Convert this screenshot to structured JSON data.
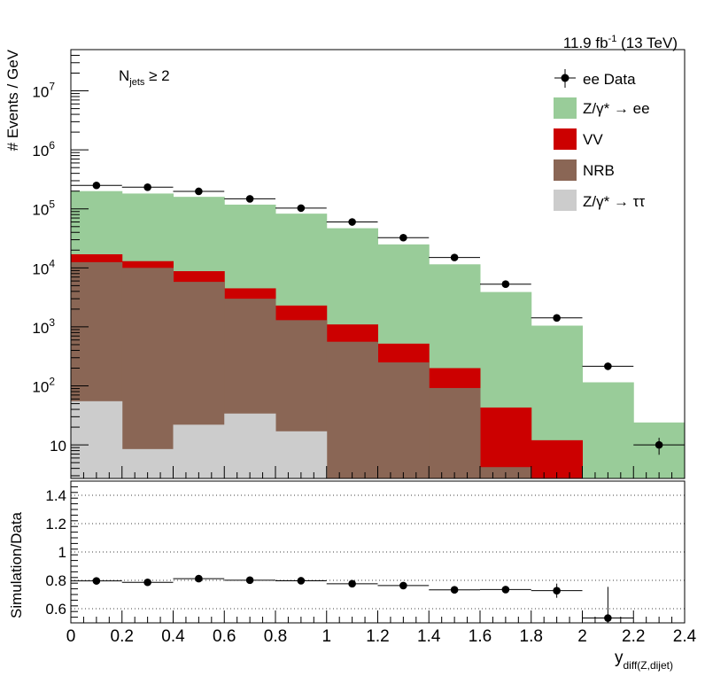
{
  "lumi_label": {
    "main": "11.9 fb",
    "sup": "-1",
    "tail": " (13 TeV)"
  },
  "selection_label": {
    "main": "N",
    "sub": "jets",
    "tail": " ≥ 2"
  },
  "ylabel_top": "# Events / GeV",
  "ylabel_bottom": "Simulation/Data",
  "xlabel": {
    "main": "y",
    "sub": "diff(Z,dijet)"
  },
  "legend": [
    {
      "key": "data",
      "kind": "marker",
      "text": "ee Data"
    },
    {
      "key": "zee",
      "kind": "box",
      "text": "Z/γ* → ee"
    },
    {
      "key": "vv",
      "kind": "box",
      "text": "VV"
    },
    {
      "key": "nrb",
      "kind": "box",
      "text": "NRB"
    },
    {
      "key": "ztt",
      "kind": "box",
      "text": "Z/γ* → ττ"
    }
  ],
  "colors": {
    "zee": "#99cc99",
    "vv": "#cc0000",
    "nrb": "#8a6655",
    "ztt": "#cccccc",
    "data": "#000000"
  },
  "chart_data": [
    {
      "type": "stacked-histogram-log",
      "xlim": [
        0,
        2.4
      ],
      "ylim": [
        2.7,
        50000000
      ],
      "yscale": "log",
      "y_ticks": [
        {
          "v": 10,
          "mant": "10",
          "exp": ""
        },
        {
          "v": 100,
          "mant": "10",
          "exp": "2"
        },
        {
          "v": 1000,
          "mant": "10",
          "exp": "3"
        },
        {
          "v": 10000,
          "mant": "10",
          "exp": "4"
        },
        {
          "v": 100000,
          "mant": "10",
          "exp": "5"
        },
        {
          "v": 1000000,
          "mant": "10",
          "exp": "6"
        },
        {
          "v": 10000000,
          "mant": "10",
          "exp": "7"
        }
      ],
      "bin_edges": [
        0,
        0.2,
        0.4,
        0.6,
        0.8,
        1.0,
        1.2,
        1.4,
        1.6,
        1.8,
        2.0,
        2.2,
        2.4
      ],
      "stack_order": [
        "ztt",
        "nrb",
        "vv",
        "zee"
      ],
      "stacks": {
        "ztt": [
          55,
          8.5,
          22,
          34,
          17,
          0,
          0,
          0,
          0,
          0,
          0,
          0
        ],
        "nrb": [
          12500,
          10000,
          5800,
          3000,
          1300,
          560,
          250,
          92,
          4.2,
          0,
          0,
          0
        ],
        "vv": [
          17000,
          13000,
          8800,
          4500,
          2300,
          1100,
          520,
          200,
          43,
          12,
          0,
          0
        ],
        "zee": [
          200000,
          182000,
          160000,
          118000,
          83000,
          47000,
          25000,
          11500,
          3900,
          1050,
          115,
          24
        ]
      },
      "data": {
        "x": [
          0.1,
          0.3,
          0.5,
          0.7,
          0.9,
          1.1,
          1.3,
          1.5,
          1.7,
          1.9,
          2.1,
          2.3
        ],
        "y": [
          250000,
          233000,
          198000,
          148000,
          103000,
          60000,
          32500,
          15000,
          5300,
          1420,
          215,
          10
        ],
        "yerr": [
          500,
          480,
          440,
          380,
          320,
          245,
          180,
          122,
          73,
          38,
          15,
          3.2
        ]
      }
    },
    {
      "type": "ratio",
      "xlim": [
        0,
        2.4
      ],
      "ylim": [
        0.5,
        1.5
      ],
      "y_ticks": [
        0.6,
        0.8,
        1.0,
        1.2,
        1.4
      ],
      "y_tick_labels": [
        "0.6",
        "0.8",
        "1",
        "1.2",
        "1.4"
      ],
      "x_ticks": [
        0,
        0.2,
        0.4,
        0.6,
        0.8,
        1.0,
        1.2,
        1.4,
        1.6,
        1.8,
        2.0,
        2.2,
        2.4
      ],
      "x_tick_labels": [
        "0",
        "0.2",
        "0.4",
        "0.6",
        "0.8",
        "1",
        "1.2",
        "1.4",
        "1.6",
        "1.8",
        "2",
        "2.2",
        "2.4"
      ],
      "grid": true,
      "x": [
        0.1,
        0.3,
        0.5,
        0.7,
        0.9,
        1.1,
        1.3,
        1.5,
        1.7,
        1.9,
        2.1
      ],
      "y": [
        0.796,
        0.786,
        0.812,
        0.801,
        0.797,
        0.776,
        0.763,
        0.733,
        0.735,
        0.727,
        0.534
      ],
      "yerr": [
        0.005,
        0.005,
        0.005,
        0.005,
        0.006,
        0.007,
        0.008,
        0.01,
        0.02,
        0.05,
        0.22
      ]
    }
  ]
}
